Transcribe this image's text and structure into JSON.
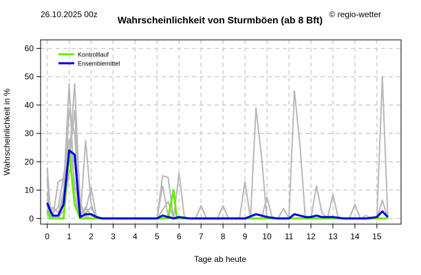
{
  "header": {
    "date": "26.10.2025 00z",
    "title": "Wahrscheinlichkeit von Sturmböen (ab 8 Bft)",
    "brand": "© regio-wetter"
  },
  "chart_data": {
    "type": "line",
    "title": "Wahrscheinlichkeit von Sturmböen (ab 8 Bft)",
    "xlabel": "Tage ab heute",
    "ylabel": "Wahrscheinlichkeit in %",
    "xlim": [
      -0.3,
      16.1
    ],
    "ylim": [
      -2,
      63
    ],
    "x_ticks": [
      0,
      1,
      2,
      3,
      4,
      5,
      6,
      7,
      8,
      9,
      10,
      11,
      12,
      13,
      14,
      15
    ],
    "y_ticks": [
      0,
      10,
      20,
      30,
      40,
      50,
      60
    ],
    "grid": true,
    "legend": {
      "position": "top-left",
      "entries": [
        {
          "label": "Kontrolllauf",
          "color": "#66ee00"
        },
        {
          "label": "Ensemblemittel",
          "color": "#0000dd"
        }
      ]
    },
    "series": [
      {
        "name": "Kontrolllauf",
        "color": "#66ee00",
        "points": [
          [
            0,
            3
          ],
          [
            0.125,
            0
          ],
          [
            0.25,
            0
          ],
          [
            0.5,
            0
          ],
          [
            0.75,
            0
          ],
          [
            1,
            24
          ],
          [
            1.25,
            5
          ],
          [
            1.5,
            0
          ],
          [
            1.75,
            0
          ],
          [
            2,
            0
          ],
          [
            2.25,
            0
          ],
          [
            3,
            0
          ],
          [
            4,
            0
          ],
          [
            5,
            0
          ],
          [
            5.5,
            0
          ],
          [
            5.75,
            10
          ],
          [
            5.9,
            0
          ],
          [
            6,
            0
          ],
          [
            7,
            0
          ],
          [
            8,
            0
          ],
          [
            9,
            0
          ],
          [
            10,
            0
          ],
          [
            11,
            0
          ],
          [
            12,
            0
          ],
          [
            13,
            0
          ],
          [
            14,
            0
          ],
          [
            15,
            0
          ],
          [
            15.5,
            0
          ]
        ]
      },
      {
        "name": "Ensemblemittel",
        "color": "#0000dd",
        "points": [
          [
            0,
            5.5
          ],
          [
            0.125,
            3
          ],
          [
            0.25,
            1
          ],
          [
            0.5,
            1
          ],
          [
            0.75,
            5
          ],
          [
            1,
            24
          ],
          [
            1.25,
            22.5
          ],
          [
            1.5,
            0.5
          ],
          [
            1.75,
            1.5
          ],
          [
            2,
            1.5
          ],
          [
            2.25,
            0.5
          ],
          [
            2.5,
            0
          ],
          [
            3,
            0
          ],
          [
            4,
            0
          ],
          [
            5,
            0
          ],
          [
            5.25,
            1
          ],
          [
            5.5,
            0.5
          ],
          [
            5.75,
            0
          ],
          [
            6,
            0.5
          ],
          [
            6.5,
            0
          ],
          [
            7,
            0
          ],
          [
            8,
            0
          ],
          [
            9,
            0
          ],
          [
            9.5,
            1.5
          ],
          [
            9.75,
            1
          ],
          [
            10,
            0.5
          ],
          [
            10.5,
            0
          ],
          [
            11,
            0
          ],
          [
            11.25,
            1.5
          ],
          [
            11.5,
            1
          ],
          [
            11.75,
            0.5
          ],
          [
            12,
            0.5
          ],
          [
            12.25,
            1
          ],
          [
            12.5,
            0.5
          ],
          [
            13,
            0.5
          ],
          [
            13.5,
            0
          ],
          [
            14,
            0
          ],
          [
            14.5,
            0
          ],
          [
            15,
            0.5
          ],
          [
            15.25,
            2.5
          ],
          [
            15.5,
            0.5
          ]
        ]
      }
    ],
    "ensemble_members": [
      [
        [
          0,
          18
        ],
        [
          0.125,
          5
        ],
        [
          0.25,
          0
        ],
        [
          0.5,
          13
        ],
        [
          0.75,
          14
        ],
        [
          1,
          20
        ],
        [
          1.25,
          47.5
        ],
        [
          1.5,
          5
        ],
        [
          1.75,
          1
        ],
        [
          2,
          0
        ],
        [
          2.25,
          0
        ],
        [
          3,
          0
        ],
        [
          5,
          0
        ]
      ],
      [
        [
          0,
          14
        ],
        [
          0.125,
          2
        ],
        [
          0.25,
          0
        ],
        [
          0.5,
          1
        ],
        [
          0.75,
          10
        ],
        [
          1,
          47.5
        ],
        [
          1.25,
          8
        ],
        [
          1.5,
          0
        ],
        [
          1.75,
          27.5
        ],
        [
          2,
          5
        ],
        [
          2.25,
          0
        ],
        [
          3,
          0
        ],
        [
          5,
          0
        ]
      ],
      [
        [
          0,
          9
        ],
        [
          0.125,
          0
        ],
        [
          0.25,
          4
        ],
        [
          0.5,
          2
        ],
        [
          0.75,
          7
        ],
        [
          1,
          38
        ],
        [
          1.25,
          30
        ],
        [
          1.5,
          2
        ],
        [
          1.75,
          3
        ],
        [
          2,
          11
        ],
        [
          2.25,
          0
        ],
        [
          3,
          0
        ],
        [
          5,
          0
        ]
      ],
      [
        [
          0,
          5
        ],
        [
          0.125,
          1
        ],
        [
          0.25,
          2
        ],
        [
          0.5,
          4
        ],
        [
          0.75,
          15
        ],
        [
          1,
          28
        ],
        [
          1.25,
          13
        ],
        [
          1.5,
          0
        ],
        [
          1.75,
          2
        ],
        [
          2,
          4
        ],
        [
          2.25,
          0
        ],
        [
          3,
          0
        ],
        [
          5,
          0
        ]
      ],
      [
        [
          0,
          2
        ],
        [
          0.125,
          0
        ],
        [
          0.25,
          0
        ],
        [
          0.5,
          0
        ],
        [
          0.75,
          8
        ],
        [
          1,
          20
        ],
        [
          1.25,
          38
        ],
        [
          1.5,
          6
        ],
        [
          1.75,
          0
        ],
        [
          2,
          0
        ],
        [
          2.25,
          0
        ],
        [
          3,
          0
        ],
        [
          5,
          0
        ]
      ],
      [
        [
          0,
          0
        ],
        [
          0.5,
          0
        ],
        [
          0.75,
          3
        ],
        [
          1,
          16
        ],
        [
          1.25,
          21
        ],
        [
          1.5,
          1
        ],
        [
          1.75,
          4
        ],
        [
          2,
          1
        ],
        [
          2.25,
          0
        ],
        [
          3,
          0
        ],
        [
          5,
          0
        ]
      ],
      [
        [
          4.5,
          0
        ],
        [
          5,
          0
        ],
        [
          5.25,
          15
        ],
        [
          5.5,
          14.5
        ],
        [
          5.75,
          0
        ],
        [
          6,
          0
        ],
        [
          7,
          0
        ]
      ],
      [
        [
          4.5,
          0
        ],
        [
          5,
          0
        ],
        [
          5.25,
          11.5
        ],
        [
          5.5,
          1
        ],
        [
          5.75,
          0
        ],
        [
          6,
          0
        ],
        [
          7,
          0
        ]
      ],
      [
        [
          5,
          0
        ],
        [
          5.5,
          6
        ],
        [
          5.75,
          0
        ],
        [
          6,
          16
        ],
        [
          6.25,
          0
        ],
        [
          7,
          0
        ]
      ],
      [
        [
          6.5,
          0
        ],
        [
          6.75,
          0
        ],
        [
          7,
          4.5
        ],
        [
          7.25,
          0
        ],
        [
          8,
          0
        ]
      ],
      [
        [
          7.5,
          0
        ],
        [
          7.75,
          0
        ],
        [
          8,
          4.5
        ],
        [
          8.25,
          0
        ],
        [
          9,
          0
        ]
      ],
      [
        [
          8.5,
          0
        ],
        [
          8.75,
          0
        ],
        [
          9,
          13
        ],
        [
          9.25,
          0
        ],
        [
          9.5,
          0
        ]
      ],
      [
        [
          9,
          0
        ],
        [
          9.25,
          0
        ],
        [
          9.5,
          39
        ],
        [
          9.75,
          22
        ],
        [
          10,
          0
        ],
        [
          10.5,
          0
        ]
      ],
      [
        [
          9.5,
          0
        ],
        [
          9.75,
          0
        ],
        [
          10,
          7.5
        ],
        [
          10.25,
          0
        ],
        [
          11,
          0
        ]
      ],
      [
        [
          10.25,
          0
        ],
        [
          10.5,
          0
        ],
        [
          10.75,
          3.5
        ],
        [
          11,
          0
        ],
        [
          11.25,
          45
        ],
        [
          11.5,
          26
        ],
        [
          11.75,
          0
        ],
        [
          12,
          0
        ]
      ],
      [
        [
          11.75,
          0
        ],
        [
          12,
          0
        ],
        [
          12.25,
          11.5
        ],
        [
          12.5,
          2
        ],
        [
          12.75,
          0
        ],
        [
          13,
          8.5
        ],
        [
          13.25,
          0
        ],
        [
          13.5,
          0
        ]
      ],
      [
        [
          13.5,
          0
        ],
        [
          13.75,
          0
        ],
        [
          14,
          5
        ],
        [
          14.25,
          0
        ],
        [
          14.5,
          1
        ],
        [
          14.75,
          0
        ],
        [
          15,
          0
        ]
      ],
      [
        [
          14.75,
          0
        ],
        [
          15,
          0
        ],
        [
          15.25,
          50
        ],
        [
          15.5,
          0
        ]
      ],
      [
        [
          14.75,
          0
        ],
        [
          15,
          0
        ],
        [
          15.25,
          6.5
        ],
        [
          15.5,
          0
        ]
      ]
    ]
  }
}
